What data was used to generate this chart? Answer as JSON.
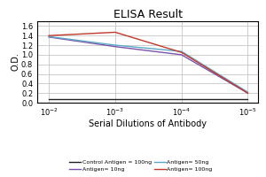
{
  "title": "ELISA Result",
  "ylabel": "O.D.",
  "xlabel": "Serial Dilutions of Antibody",
  "x_values": [
    0.01,
    0.001,
    0.0001,
    1e-05
  ],
  "x_tick_labels": [
    "10^-2",
    "10^-3",
    "10^-4",
    "10^-5"
  ],
  "ylim": [
    0,
    1.7
  ],
  "yticks": [
    0,
    0.2,
    0.4,
    0.6,
    0.8,
    1.0,
    1.2,
    1.4,
    1.6
  ],
  "lines": [
    {
      "label": "Control Antigen = 100ng",
      "color": "#222222",
      "values": [
        0.07,
        0.07,
        0.07,
        0.07
      ]
    },
    {
      "label": "Antigen= 10ng",
      "color": "#7B52AB",
      "values": [
        1.37,
        1.17,
        1.0,
        0.2
      ]
    },
    {
      "label": "Antigen= 50ng",
      "color": "#5BA8C4",
      "values": [
        1.38,
        1.2,
        1.07,
        0.22
      ]
    },
    {
      "label": "Antigen= 100ng",
      "color": "#C0392B",
      "values": [
        1.4,
        1.47,
        1.05,
        0.2
      ]
    }
  ],
  "background_color": "#ffffff",
  "grid_color": "#bbbbbb",
  "xlim_left": 0.015,
  "xlim_right": 7e-06
}
